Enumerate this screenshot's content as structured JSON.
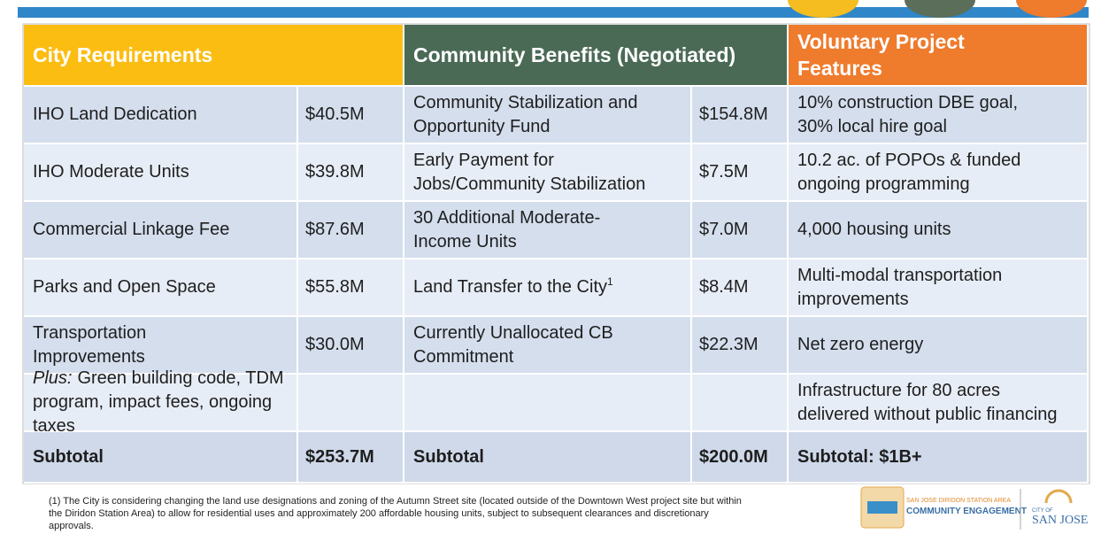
{
  "table": {
    "headers": [
      "City Requirements",
      "Community Benefits (Negotiated)",
      [
        "Voluntary Project",
        "Features"
      ]
    ],
    "rows": [
      {
        "city_item": "IHO Land Dedication",
        "city_value": "$40.5M",
        "cb_item": [
          "Community Stabilization and",
          "Opportunity Fund"
        ],
        "cb_value": "$154.8M",
        "feature": [
          "10% construction DBE goal,",
          "30% local hire goal"
        ]
      },
      {
        "city_item": "IHO Moderate Units",
        "city_value": "$39.8M",
        "cb_item": [
          "Early Payment for",
          "Jobs/Community Stabilization"
        ],
        "cb_value": "$7.5M",
        "feature": [
          "10.2 ac. of POPOs & funded",
          "ongoing programming"
        ]
      },
      {
        "city_item": "Commercial Linkage Fee",
        "city_value": "$87.6M",
        "cb_item": [
          "30 Additional Moderate-",
          "Income Units"
        ],
        "cb_value": "$7.0M",
        "feature": "4,000 housing units"
      },
      {
        "city_item": "Parks and Open Space",
        "city_value": "$55.8M",
        "cb_item": {
          "text": "Land Transfer to the City",
          "note": "1"
        },
        "cb_value": "$8.4M",
        "feature": [
          "Multi-modal transportation",
          "improvements"
        ]
      },
      {
        "city_item": [
          "Transportation",
          "Improvements"
        ],
        "city_value": "$30.0M",
        "cb_item": [
          "Currently Unallocated CB",
          "Commitment"
        ],
        "cb_value": "$22.3M",
        "feature": "Net zero energy"
      },
      {
        "city_item": {
          "prefix": "Plus:",
          "lines": [
            "Green building code, TDM",
            "program, impact fees, ongoing taxes"
          ]
        },
        "feature": [
          "Infrastructure for 80 acres",
          "delivered without public financing"
        ]
      },
      {
        "city_item": "Subtotal",
        "city_value": "$253.7M",
        "cb_item": "Subtotal",
        "cb_value": "$200.0M",
        "feature": "Subtotal: $1B+"
      }
    ]
  },
  "footnote": [
    "(1) The City is considering changing the land use designations and zoning of the Autumn Street site (located outside of the Downtown West project site but within",
    "the Diridon Station Area) to allow for residential uses and approximately 200 affordable housing units, subject to subsequent clearances and discretionary",
    "approvals."
  ],
  "logos": {
    "diridon_line1": "SAN JOSE DIRIDON STATION AREA",
    "diridon_line2": "COMMUNITY ENGAGEMENT",
    "city_of": "CITY OF",
    "city_name": "SAN JOSE"
  }
}
